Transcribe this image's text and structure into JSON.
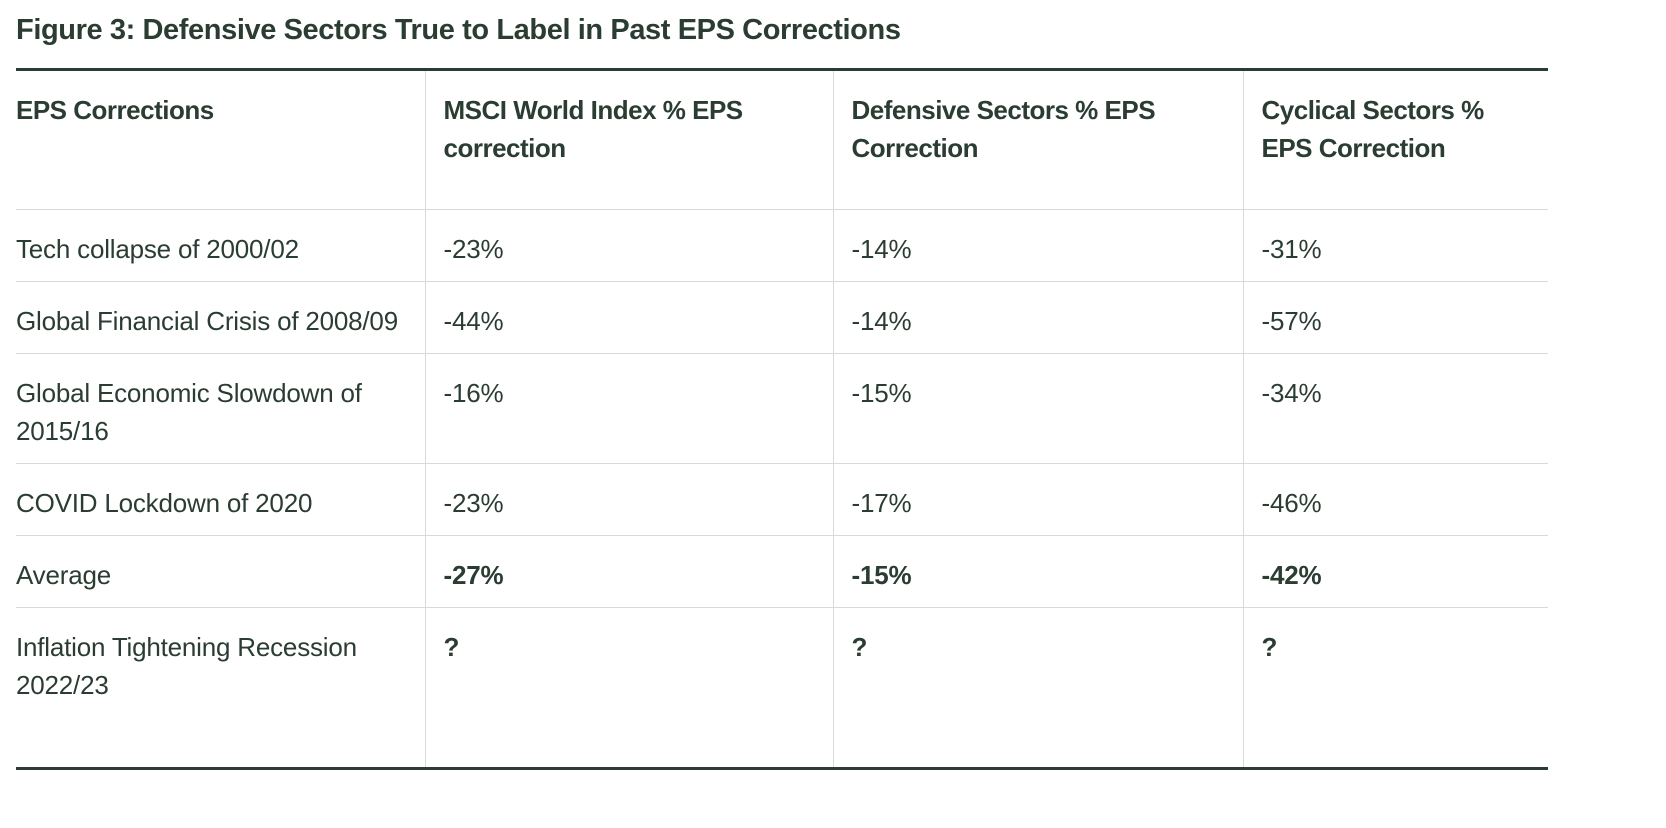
{
  "title": "Figure 3: Defensive Sectors True to Label in Past EPS Corrections",
  "colors": {
    "text": "#2b3d32",
    "border_dark": "#2b3d32",
    "border_light": "#d9d9d9",
    "background": "#ffffff"
  },
  "table": {
    "columns": [
      "EPS Corrections",
      "MSCI World Index % EPS correction",
      "Defensive Sectors % EPS Correction",
      "Cyclical Sectors % EPS Correction"
    ],
    "rows": [
      {
        "cells": [
          "Tech collapse of 2000/02",
          "-23%",
          "-14%",
          "-31%"
        ],
        "emphasis": "normal"
      },
      {
        "cells": [
          "Global Financial Crisis of 2008/09",
          "-44%",
          "-14%",
          "-57%"
        ],
        "emphasis": "normal"
      },
      {
        "cells": [
          "Global Economic Slowdown of 2015/16",
          "-16%",
          "-15%",
          "-34%"
        ],
        "emphasis": "normal"
      },
      {
        "cells": [
          "COVID Lockdown of 2020",
          "-23%",
          "-17%",
          "-46%"
        ],
        "emphasis": "normal"
      },
      {
        "cells": [
          "Average",
          "-27%",
          "-15%",
          "-42%"
        ],
        "emphasis": "bold-values"
      },
      {
        "cells": [
          "Inflation Tightening Recession 2022/23",
          "?",
          "?",
          "?"
        ],
        "emphasis": "bold-values"
      }
    ]
  },
  "chart_data": {
    "type": "table",
    "title": "Figure 3: Defensive Sectors True to Label in Past EPS Corrections",
    "columns": [
      "EPS Corrections",
      "MSCI World Index % EPS correction",
      "Defensive Sectors % EPS Correction",
      "Cyclical Sectors % EPS Correction"
    ],
    "rows": [
      [
        "Tech collapse of 2000/02",
        "-23%",
        "-14%",
        "-31%"
      ],
      [
        "Global Financial Crisis of 2008/09",
        "-44%",
        "-14%",
        "-57%"
      ],
      [
        "Global Economic Slowdown of 2015/16",
        "-16%",
        "-15%",
        "-34%"
      ],
      [
        "COVID Lockdown of 2020",
        "-23%",
        "-17%",
        "-46%"
      ],
      [
        "Average",
        "-27%",
        "-15%",
        "-42%"
      ],
      [
        "Inflation Tightening Recession 2022/23",
        "?",
        "?",
        "?"
      ]
    ]
  }
}
